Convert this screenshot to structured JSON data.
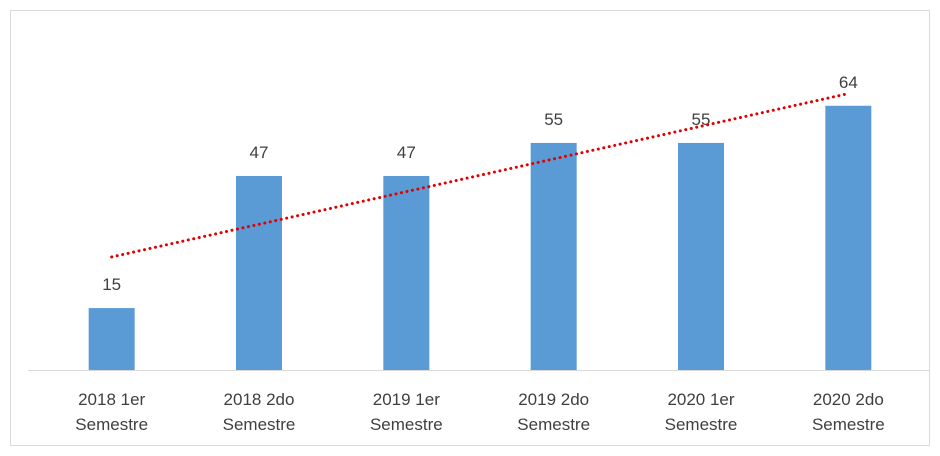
{
  "chart_data": {
    "type": "bar",
    "categories": [
      "2018 1er Semestre",
      "2018 2do Semestre",
      "2019 1er Semestre",
      "2019 2do Semestre",
      "2020 1er Semestre",
      "2020 2do Semestre"
    ],
    "values": [
      15,
      47,
      47,
      55,
      55,
      64
    ],
    "color": "#5b9bd5",
    "ylim": [
      0,
      70
    ],
    "trendline": {
      "type": "linear",
      "color": "#e00000",
      "style": "dotted"
    },
    "data_labels": true
  }
}
